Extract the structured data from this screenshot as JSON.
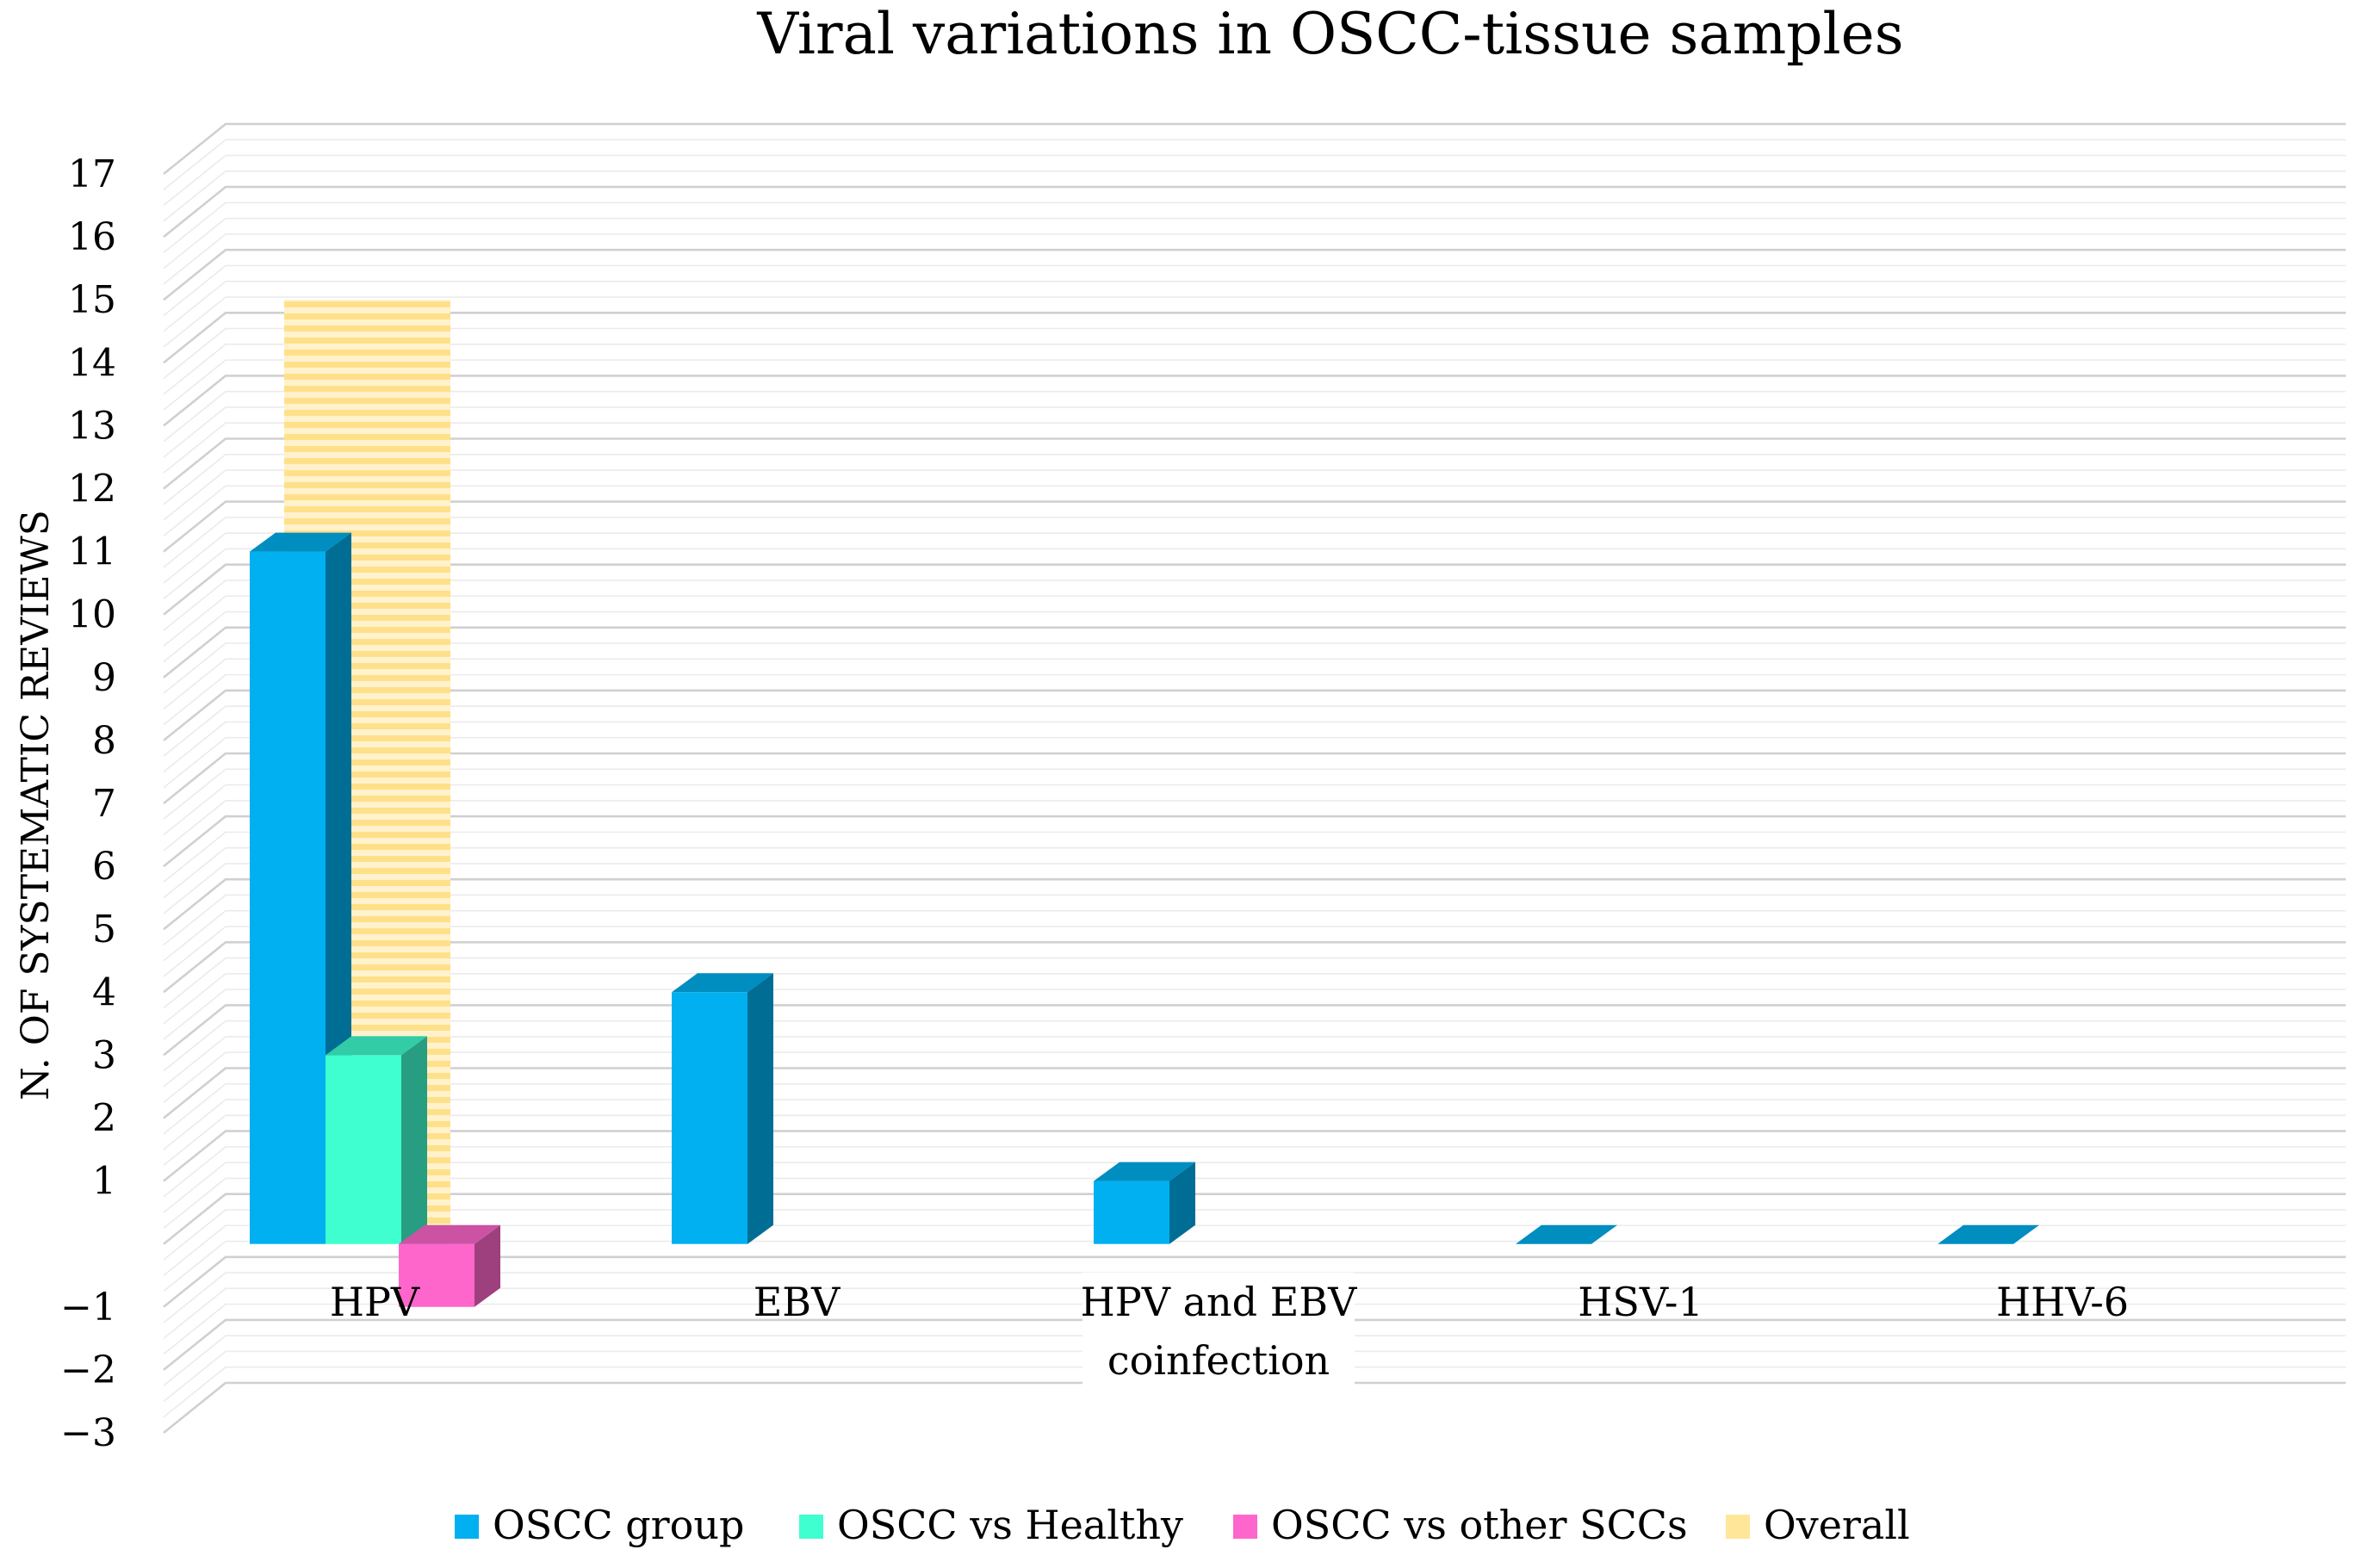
{
  "chart_data": {
    "type": "bar",
    "title": "Viral variations in OSCC-tissue samples",
    "xlabel": "",
    "ylabel": "N. OF SYSTEMATIC REVIEWS",
    "ylim": [
      -3,
      17
    ],
    "yticks": [
      "17",
      "16",
      "15",
      "14",
      "13",
      "12",
      "11",
      "10",
      "9",
      "8",
      "7",
      "6",
      "5",
      "4",
      "3",
      "2",
      "1",
      "−1",
      "−2",
      "−3"
    ],
    "categories": [
      {
        "line1": "HPV",
        "line2": ""
      },
      {
        "line1": "EBV",
        "line2": ""
      },
      {
        "line1": "HPV and EBV",
        "line2": "coinfection"
      },
      {
        "line1": "HSV-1",
        "line2": ""
      },
      {
        "line1": "HHV-6",
        "line2": ""
      }
    ],
    "series": [
      {
        "name": "OSCC group",
        "color": "#00B0F0",
        "values": [
          11,
          4,
          1,
          0,
          0
        ]
      },
      {
        "name": "OSCC vs Healthy",
        "color": "#3FFFD0",
        "values": [
          3,
          0,
          0,
          0,
          0
        ]
      },
      {
        "name": "OSCC vs other SCCs",
        "color": "#FF66CC",
        "values": [
          -1,
          0,
          0,
          0,
          0
        ]
      },
      {
        "name": "Overall",
        "color": "#FFE699",
        "values": [
          15,
          0,
          0,
          0,
          0
        ]
      }
    ],
    "legend_position": "bottom",
    "grid": true
  }
}
